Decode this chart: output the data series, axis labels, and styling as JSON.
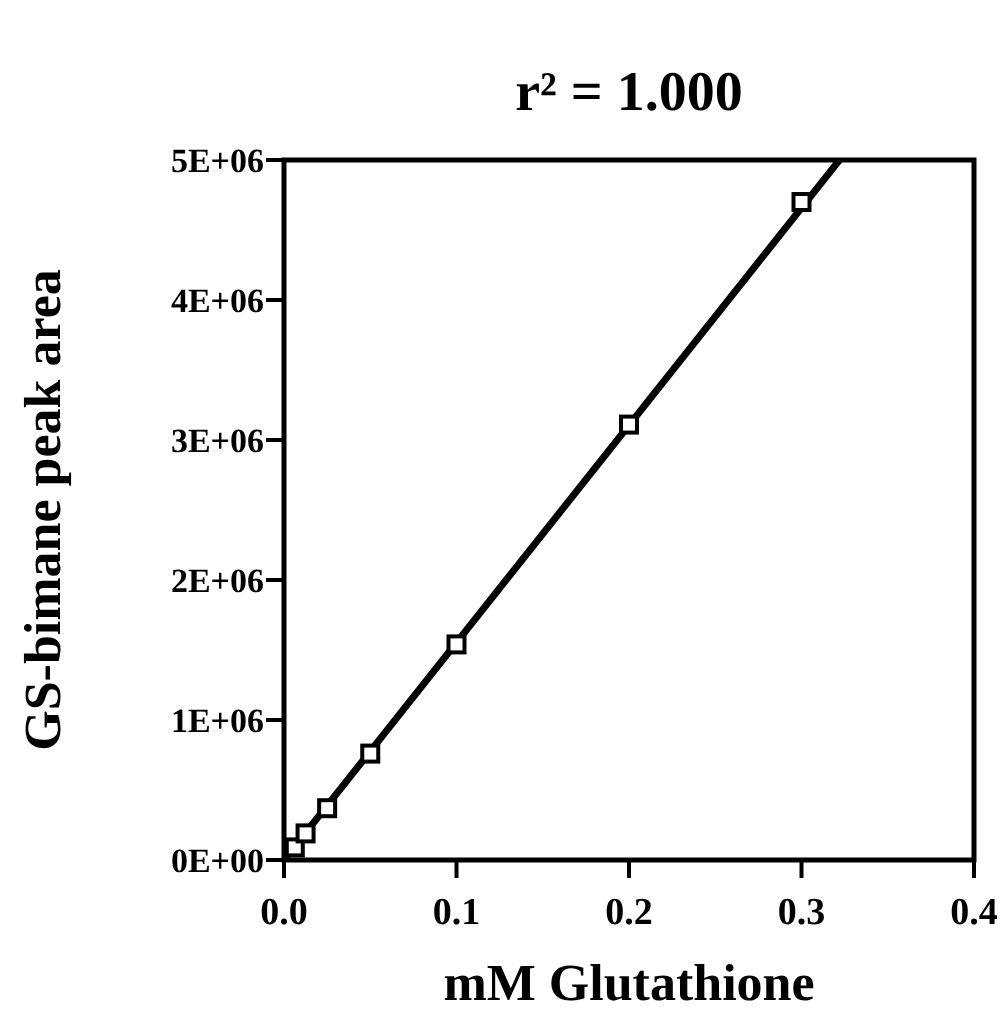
{
  "chart_data": {
    "type": "scatter",
    "title": "r² = 1.000",
    "xlabel": "mM Glutathione",
    "ylabel": "GS-bimane peak area",
    "x": [
      0.00625,
      0.0125,
      0.025,
      0.05,
      0.1,
      0.2,
      0.3
    ],
    "series": [
      {
        "color": "#000000",
        "marker": "square",
        "values": [
          90000,
          190000,
          370000,
          760000,
          1540000,
          3110000,
          4700000
        ]
      },
      {
        "type": "line",
        "color": "#000000",
        "x": [
          0,
          0.322
        ],
        "values": [
          0,
          5000000
        ]
      }
    ],
    "xlim": [
      0,
      0.4
    ],
    "ylim": [
      0,
      5000000
    ],
    "xticks": [
      {
        "value": 0,
        "label": "0.0"
      },
      0.1,
      0.2,
      0.3,
      0.4
    ],
    "yticks": [
      {
        "value": 0,
        "label": "0E+00"
      },
      {
        "value": 1000000,
        "label": "1E+06"
      },
      {
        "value": 2000000,
        "label": "2E+06"
      },
      {
        "value": 3000000,
        "label": "3E+06"
      },
      {
        "value": 4000000,
        "label": "4E+06"
      },
      {
        "value": 5000000,
        "label": "5E+06"
      }
    ],
    "grid": false
  }
}
